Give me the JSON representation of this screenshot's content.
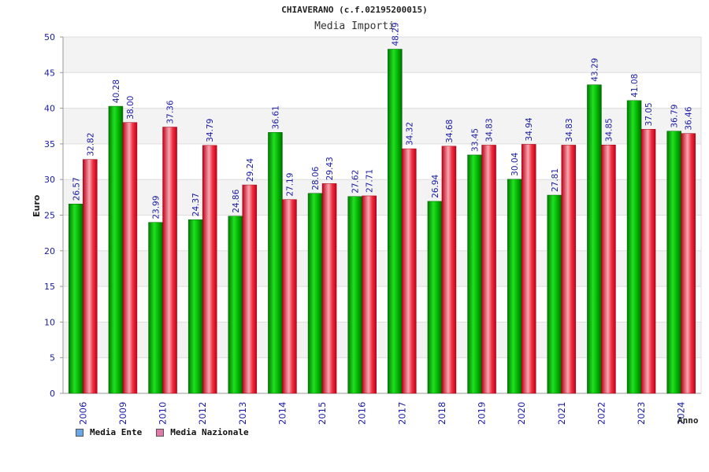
{
  "header": {
    "title": "CHIAVERANO (c.f.02195200015)",
    "subtitle": "Media Importi"
  },
  "legend": {
    "items": [
      {
        "label": "Media Ente",
        "color": "#6aa8e8"
      },
      {
        "label": "Media Nazionale",
        "color": "#e07aa8"
      }
    ]
  },
  "chart_data": {
    "type": "bar",
    "title": "CHIAVERANO (c.f.02195200015)",
    "subtitle": "Media Importi",
    "xlabel": "Anno",
    "ylabel": "Euro",
    "ylim": [
      0,
      50
    ],
    "yticks": [
      0,
      5,
      10,
      15,
      20,
      25,
      30,
      35,
      40,
      45,
      50
    ],
    "grid": true,
    "legend_position": "bottom-left",
    "categories": [
      "2006",
      "2009",
      "2010",
      "2012",
      "2013",
      "2014",
      "2015",
      "2016",
      "2017",
      "2018",
      "2019",
      "2020",
      "2021",
      "2022",
      "2023",
      "2024"
    ],
    "series": [
      {
        "name": "Media Ente",
        "color": "#00bb00",
        "values": [
          26.57,
          40.28,
          23.99,
          24.37,
          24.86,
          36.61,
          28.06,
          27.62,
          48.29,
          26.94,
          33.45,
          30.04,
          27.81,
          43.29,
          41.08,
          36.79
        ]
      },
      {
        "name": "Media Nazionale",
        "color": "#ee1133",
        "values": [
          32.82,
          38.0,
          37.36,
          34.79,
          29.24,
          27.19,
          29.43,
          27.71,
          34.32,
          34.68,
          34.83,
          34.94,
          34.83,
          34.85,
          37.05,
          36.46
        ]
      }
    ]
  }
}
